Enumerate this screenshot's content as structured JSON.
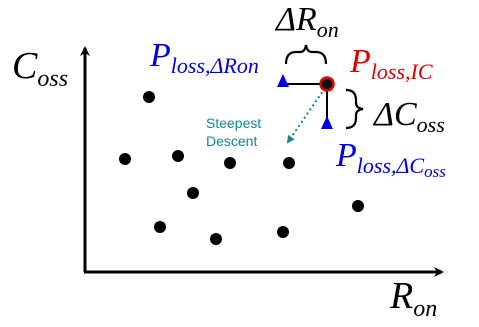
{
  "axes": {
    "y_label_main": "C",
    "y_label_sub": "oss",
    "x_label_main": "R",
    "x_label_sub": "on"
  },
  "labels": {
    "delta_r_main": "ΔR",
    "delta_r_sub": "on",
    "delta_c_main": "ΔC",
    "delta_c_sub": "oss",
    "p_loss_ic_main": "P",
    "p_loss_ic_sub": "loss,IC",
    "p_loss_dron_main": "P",
    "p_loss_dron_sub": "loss,ΔRon",
    "p_loss_dcoss_main": "P",
    "p_loss_dcoss_sub": "loss,ΔC",
    "p_loss_dcoss_subsub": "oss",
    "steepest_line1": "Steepest",
    "steepest_line2": "Descent"
  },
  "colors": {
    "axis": "#000000",
    "points": "#000000",
    "ic_point": "#e00000",
    "perturb": "#0000e6",
    "steepest": "#138a8a"
  }
}
